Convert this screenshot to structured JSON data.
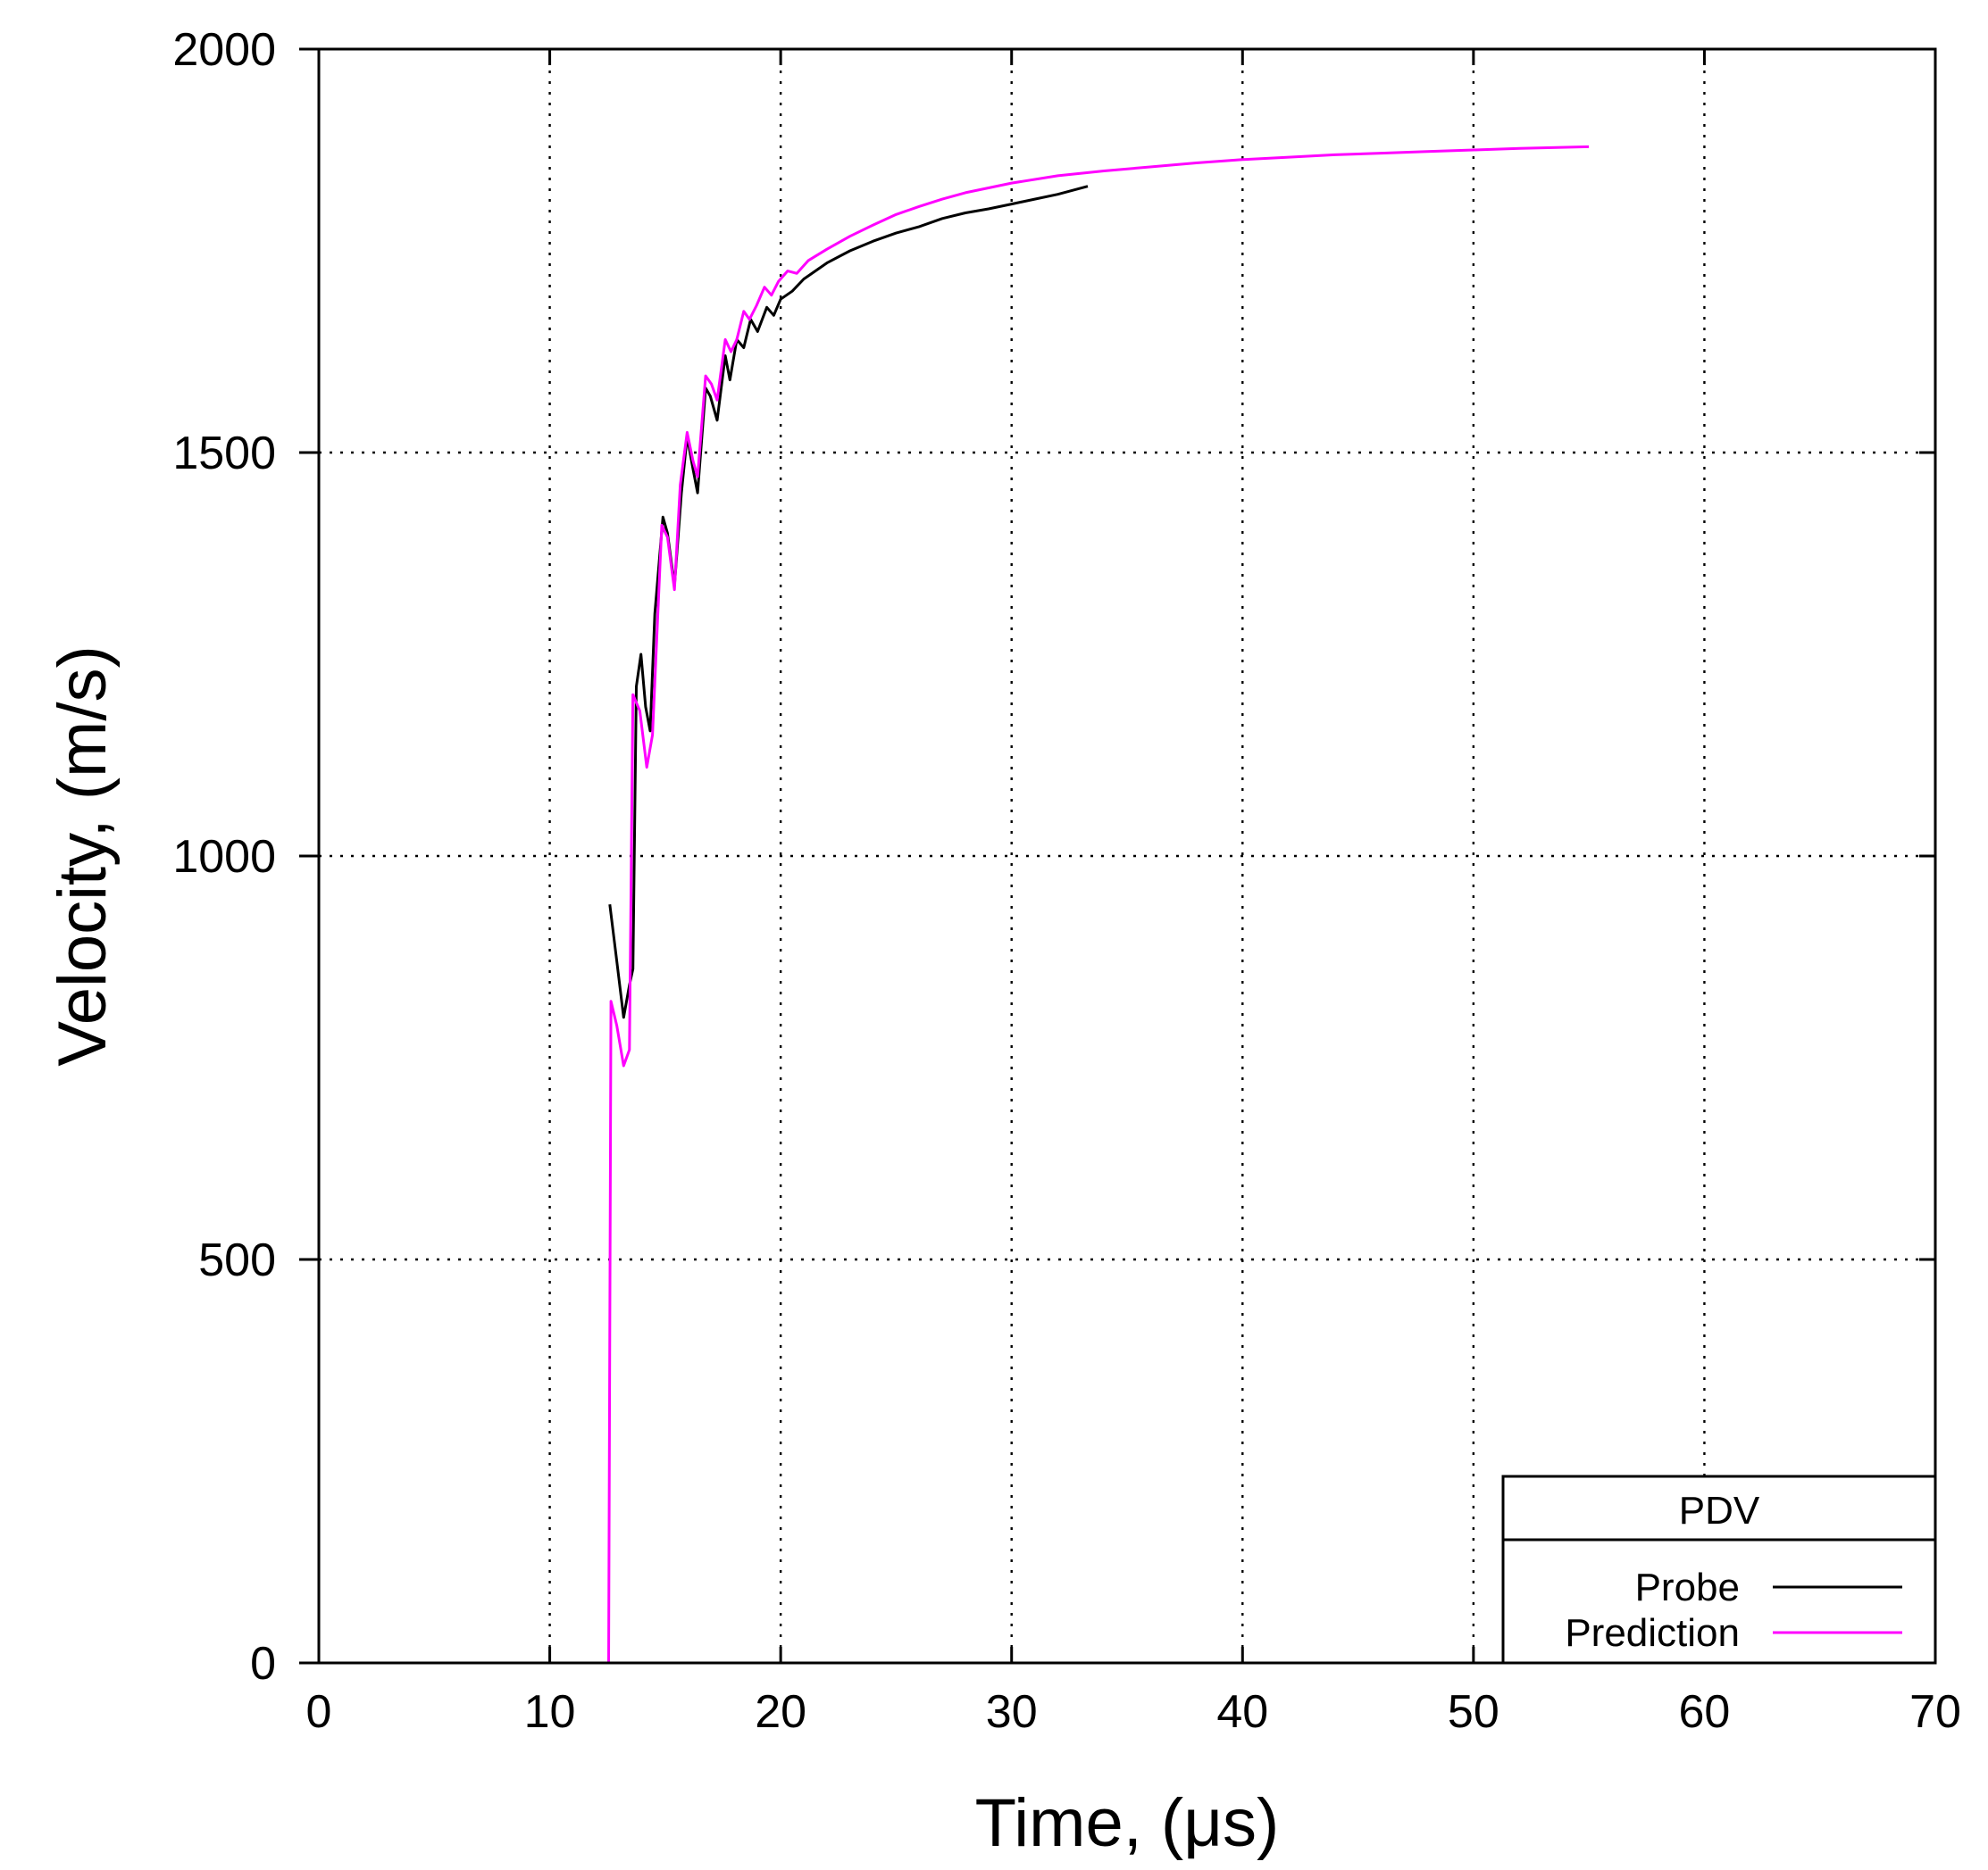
{
  "chart_data": {
    "type": "line",
    "xlabel": "Time, (μs)",
    "ylabel": "Velocity, (m/s)",
    "xlim": [
      0,
      70
    ],
    "ylim": [
      0,
      2000
    ],
    "x_ticks": [
      0,
      10,
      20,
      30,
      40,
      50,
      60,
      70
    ],
    "y_ticks": [
      0,
      500,
      1000,
      1500,
      2000
    ],
    "x_tick_labels": [
      "0",
      "10",
      "20",
      "30",
      "40",
      "50",
      "60",
      "70"
    ],
    "y_tick_labels": [
      "0",
      "500",
      "1000",
      "1500",
      "2000"
    ],
    "grid": true,
    "legend": {
      "title": "PDV",
      "placement": "bottom-right",
      "entries": [
        "Probe",
        "Prediction"
      ]
    },
    "series": [
      {
        "name": "Probe",
        "color": "#000000",
        "points": [
          [
            12.6,
            940
          ],
          [
            12.9,
            870
          ],
          [
            13.2,
            800
          ],
          [
            13.45,
            840
          ],
          [
            13.6,
            860
          ],
          [
            13.75,
            1210
          ],
          [
            13.95,
            1250
          ],
          [
            14.15,
            1185
          ],
          [
            14.35,
            1155
          ],
          [
            14.55,
            1300
          ],
          [
            14.9,
            1420
          ],
          [
            15.1,
            1400
          ],
          [
            15.4,
            1335
          ],
          [
            15.7,
            1450
          ],
          [
            15.95,
            1520
          ],
          [
            16.2,
            1480
          ],
          [
            16.4,
            1450
          ],
          [
            16.75,
            1580
          ],
          [
            16.95,
            1570
          ],
          [
            17.25,
            1540
          ],
          [
            17.6,
            1620
          ],
          [
            17.8,
            1590
          ],
          [
            18.1,
            1640
          ],
          [
            18.4,
            1630
          ],
          [
            18.7,
            1665
          ],
          [
            19.0,
            1650
          ],
          [
            19.4,
            1680
          ],
          [
            19.7,
            1670
          ],
          [
            20.0,
            1690
          ],
          [
            20.5,
            1700
          ],
          [
            21.0,
            1715
          ],
          [
            22.0,
            1735
          ],
          [
            23.0,
            1750
          ],
          [
            24.0,
            1762
          ],
          [
            25.0,
            1772
          ],
          [
            26.0,
            1780
          ],
          [
            27.0,
            1790
          ],
          [
            28.0,
            1797
          ],
          [
            29.0,
            1802
          ],
          [
            30.0,
            1808
          ],
          [
            31.0,
            1814
          ],
          [
            32.0,
            1820
          ],
          [
            33.3,
            1830
          ]
        ]
      },
      {
        "name": "Prediction",
        "color": "#ff00ff",
        "points": [
          [
            5.0,
            0
          ],
          [
            12.55,
            0
          ],
          [
            12.65,
            820
          ],
          [
            12.9,
            790
          ],
          [
            13.2,
            740
          ],
          [
            13.45,
            760
          ],
          [
            13.6,
            1200
          ],
          [
            13.9,
            1180
          ],
          [
            14.2,
            1110
          ],
          [
            14.45,
            1150
          ],
          [
            14.85,
            1410
          ],
          [
            15.1,
            1395
          ],
          [
            15.4,
            1330
          ],
          [
            15.65,
            1460
          ],
          [
            15.95,
            1525
          ],
          [
            16.2,
            1490
          ],
          [
            16.4,
            1470
          ],
          [
            16.75,
            1595
          ],
          [
            17.0,
            1585
          ],
          [
            17.25,
            1565
          ],
          [
            17.6,
            1640
          ],
          [
            17.85,
            1625
          ],
          [
            18.1,
            1640
          ],
          [
            18.4,
            1675
          ],
          [
            18.65,
            1665
          ],
          [
            18.95,
            1682
          ],
          [
            19.3,
            1705
          ],
          [
            19.6,
            1695
          ],
          [
            19.9,
            1712
          ],
          [
            20.3,
            1725
          ],
          [
            20.7,
            1722
          ],
          [
            21.2,
            1738
          ],
          [
            22.0,
            1752
          ],
          [
            23.0,
            1768
          ],
          [
            24.0,
            1782
          ],
          [
            25.0,
            1795
          ],
          [
            26.0,
            1805
          ],
          [
            27.0,
            1814
          ],
          [
            28.0,
            1822
          ],
          [
            29.0,
            1828
          ],
          [
            30.0,
            1834
          ],
          [
            32.0,
            1843
          ],
          [
            34.0,
            1849
          ],
          [
            36.0,
            1854
          ],
          [
            38.0,
            1859
          ],
          [
            40.0,
            1863
          ],
          [
            42.0,
            1866
          ],
          [
            44.0,
            1869
          ],
          [
            46.0,
            1871
          ],
          [
            48.0,
            1873
          ],
          [
            50.0,
            1875
          ],
          [
            52.0,
            1877
          ],
          [
            55.0,
            1879
          ]
        ]
      }
    ]
  }
}
